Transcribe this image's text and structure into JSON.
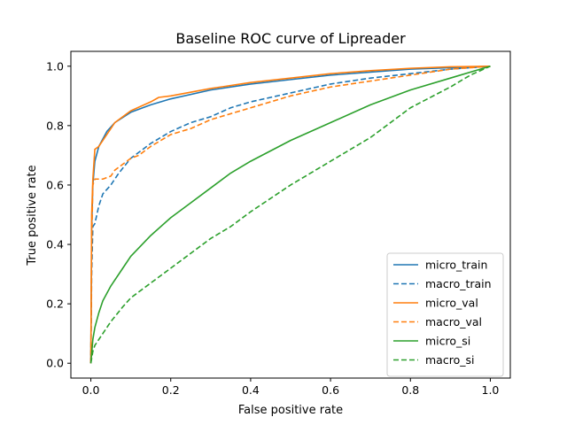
{
  "chart_data": {
    "type": "line",
    "title": "Baseline ROC curve of Lipreader",
    "xlabel": "False positive rate",
    "ylabel": "True positive rate",
    "xlim": [
      -0.05,
      1.05
    ],
    "ylim": [
      -0.05,
      1.05
    ],
    "xticks": [
      "0.0",
      "0.2",
      "0.4",
      "0.6",
      "0.8",
      "1.0"
    ],
    "yticks": [
      "0.0",
      "0.2",
      "0.4",
      "0.6",
      "0.8",
      "1.0"
    ],
    "grid": false,
    "legend_position": "lower right",
    "series": [
      {
        "name": "micro_train",
        "color": "#1f77b4",
        "style": "solid",
        "x": [
          0,
          0.002,
          0.005,
          0.01,
          0.02,
          0.04,
          0.06,
          0.1,
          0.15,
          0.2,
          0.3,
          0.4,
          0.5,
          0.6,
          0.7,
          0.8,
          0.9,
          1.0
        ],
        "y": [
          0,
          0.45,
          0.6,
          0.68,
          0.73,
          0.78,
          0.81,
          0.845,
          0.87,
          0.89,
          0.92,
          0.94,
          0.955,
          0.97,
          0.98,
          0.99,
          0.995,
          1.0
        ]
      },
      {
        "name": "macro_train",
        "color": "#1f77b4",
        "style": "dashed",
        "x": [
          0,
          0.002,
          0.005,
          0.01,
          0.02,
          0.03,
          0.05,
          0.07,
          0.1,
          0.15,
          0.2,
          0.25,
          0.3,
          0.35,
          0.4,
          0.5,
          0.6,
          0.7,
          0.8,
          0.9,
          1.0
        ],
        "y": [
          0,
          0.3,
          0.46,
          0.47,
          0.53,
          0.57,
          0.6,
          0.64,
          0.69,
          0.74,
          0.78,
          0.81,
          0.83,
          0.86,
          0.88,
          0.91,
          0.94,
          0.96,
          0.975,
          0.99,
          1.0
        ]
      },
      {
        "name": "micro_val",
        "color": "#ff7f0e",
        "style": "solid",
        "x": [
          0,
          0.002,
          0.005,
          0.01,
          0.02,
          0.04,
          0.06,
          0.1,
          0.15,
          0.17,
          0.2,
          0.3,
          0.4,
          0.5,
          0.6,
          0.7,
          0.8,
          0.9,
          1.0
        ],
        "y": [
          0,
          0.5,
          0.62,
          0.72,
          0.73,
          0.77,
          0.81,
          0.85,
          0.88,
          0.895,
          0.9,
          0.925,
          0.945,
          0.96,
          0.975,
          0.985,
          0.993,
          0.998,
          1.0
        ]
      },
      {
        "name": "macro_val",
        "color": "#ff7f0e",
        "style": "dashed",
        "x": [
          0,
          0.002,
          0.005,
          0.01,
          0.02,
          0.03,
          0.05,
          0.06,
          0.08,
          0.1,
          0.12,
          0.15,
          0.2,
          0.25,
          0.3,
          0.35,
          0.4,
          0.5,
          0.6,
          0.7,
          0.8,
          0.9,
          1.0
        ],
        "y": [
          0,
          0.4,
          0.6,
          0.62,
          0.62,
          0.62,
          0.63,
          0.65,
          0.67,
          0.69,
          0.7,
          0.73,
          0.77,
          0.79,
          0.82,
          0.84,
          0.86,
          0.9,
          0.93,
          0.95,
          0.97,
          0.99,
          1.0
        ]
      },
      {
        "name": "micro_si",
        "color": "#2ca02c",
        "style": "solid",
        "x": [
          0,
          0.005,
          0.01,
          0.02,
          0.03,
          0.05,
          0.08,
          0.1,
          0.15,
          0.2,
          0.25,
          0.3,
          0.35,
          0.4,
          0.5,
          0.6,
          0.7,
          0.8,
          0.9,
          1.0
        ],
        "y": [
          0,
          0.08,
          0.12,
          0.17,
          0.21,
          0.26,
          0.32,
          0.36,
          0.43,
          0.49,
          0.54,
          0.59,
          0.64,
          0.68,
          0.75,
          0.81,
          0.87,
          0.92,
          0.96,
          1.0
        ]
      },
      {
        "name": "macro_si",
        "color": "#2ca02c",
        "style": "dashed",
        "x": [
          0,
          0.005,
          0.01,
          0.02,
          0.03,
          0.05,
          0.08,
          0.1,
          0.15,
          0.2,
          0.25,
          0.3,
          0.35,
          0.4,
          0.5,
          0.6,
          0.7,
          0.8,
          0.9,
          0.95,
          1.0
        ],
        "y": [
          0,
          0.04,
          0.06,
          0.08,
          0.1,
          0.14,
          0.19,
          0.22,
          0.27,
          0.32,
          0.37,
          0.42,
          0.46,
          0.51,
          0.6,
          0.68,
          0.76,
          0.86,
          0.93,
          0.97,
          1.0
        ]
      }
    ]
  }
}
